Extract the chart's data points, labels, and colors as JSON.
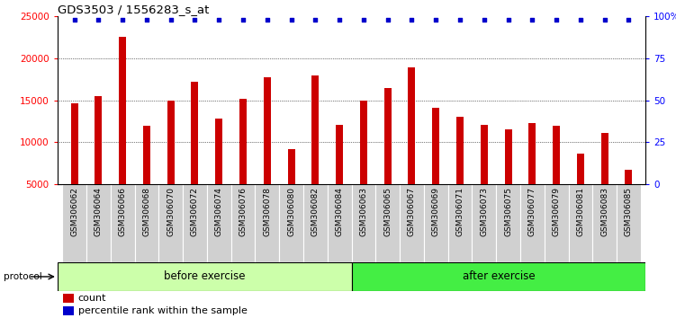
{
  "title": "GDS3503 / 1556283_s_at",
  "categories": [
    "GSM306062",
    "GSM306064",
    "GSM306066",
    "GSM306068",
    "GSM306070",
    "GSM306072",
    "GSM306074",
    "GSM306076",
    "GSM306078",
    "GSM306080",
    "GSM306082",
    "GSM306084",
    "GSM306063",
    "GSM306065",
    "GSM306067",
    "GSM306069",
    "GSM306071",
    "GSM306073",
    "GSM306075",
    "GSM306077",
    "GSM306079",
    "GSM306081",
    "GSM306083",
    "GSM306085"
  ],
  "counts": [
    14600,
    15500,
    22500,
    12000,
    14900,
    17200,
    12800,
    15200,
    17700,
    9200,
    17900,
    12100,
    15000,
    16400,
    18900,
    14100,
    13000,
    12100,
    11500,
    12300,
    12000,
    8700,
    11100,
    6700
  ],
  "before_exercise_count": 12,
  "after_exercise_count": 12,
  "bar_color": "#cc0000",
  "dot_color": "#0000cc",
  "ylim_low": 5000,
  "ylim_high": 25000,
  "yticks": [
    5000,
    10000,
    15000,
    20000,
    25000
  ],
  "right_yticks_pct": [
    0,
    25,
    50,
    75,
    100
  ],
  "right_ylabels": [
    "0",
    "25",
    "50",
    "75",
    "100%"
  ],
  "before_color": "#ccffaa",
  "after_color": "#44ee44",
  "tick_bg_color": "#d0d0d0",
  "legend_count_label": "count",
  "legend_pct_label": "percentile rank within the sample"
}
